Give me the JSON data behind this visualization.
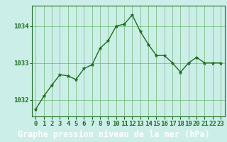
{
  "x": [
    0,
    1,
    2,
    3,
    4,
    5,
    6,
    7,
    8,
    9,
    10,
    11,
    12,
    13,
    14,
    15,
    16,
    17,
    18,
    19,
    20,
    21,
    22,
    23
  ],
  "y": [
    1031.75,
    1032.1,
    1032.4,
    1032.68,
    1032.65,
    1032.55,
    1032.85,
    1032.95,
    1033.4,
    1033.6,
    1034.0,
    1034.05,
    1034.3,
    1033.85,
    1033.5,
    1033.2,
    1033.2,
    1033.0,
    1032.75,
    1033.0,
    1033.15,
    1033.0,
    1033.0,
    1033.0
  ],
  "line_color": "#1a6e1a",
  "marker": "*",
  "bg_color": "#cceee8",
  "grid_color": "#55aa55",
  "axis_color": "#1a6e1a",
  "label_bg_color": "#4aaa4a",
  "ylabel_ticks": [
    1032,
    1033,
    1034
  ],
  "xlabel": "Graphe pression niveau de la mer (hPa)",
  "xlabel_fontsize": 8.5,
  "tick_fontsize": 6.5,
  "ylim": [
    1031.55,
    1034.55
  ],
  "xlim": [
    -0.5,
    23.5
  ]
}
